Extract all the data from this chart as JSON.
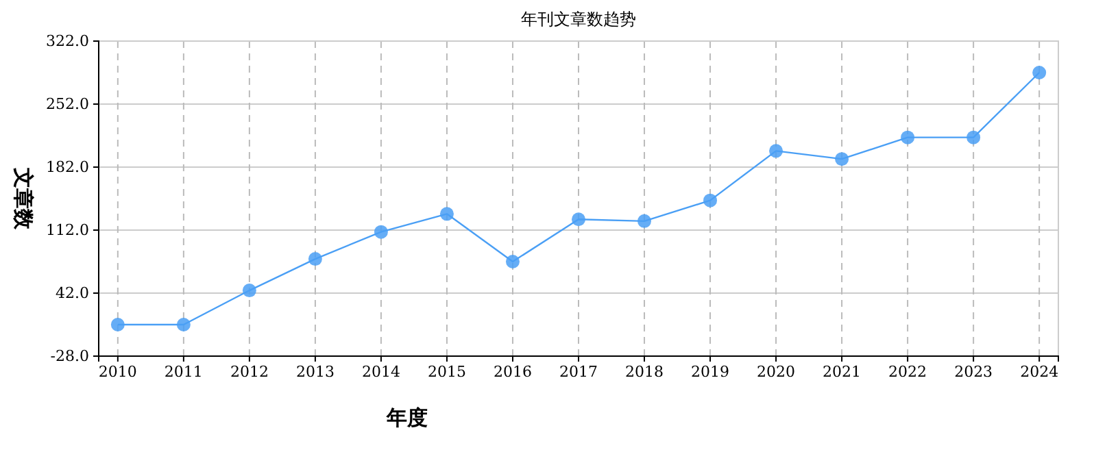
{
  "chart_data": {
    "type": "line",
    "title": "年刊文章数趋势",
    "xlabel": "年度",
    "ylabel": "文章数",
    "categories": [
      "2010",
      "2011",
      "2012",
      "2013",
      "2014",
      "2015",
      "2016",
      "2017",
      "2018",
      "2019",
      "2020",
      "2021",
      "2022",
      "2023",
      "2024"
    ],
    "series": [
      {
        "color": "#4a9ff5",
        "values": [
          7,
          7,
          45,
          80,
          110,
          130,
          77,
          124,
          122,
          145,
          200,
          191,
          215,
          215,
          287
        ]
      }
    ],
    "ylim": [
      -28,
      322
    ],
    "yticks": [
      {
        "value": -28,
        "label": "-28.0"
      },
      {
        "value": 42,
        "label": "42.0"
      },
      {
        "value": 112,
        "label": "112.0"
      },
      {
        "value": 182,
        "label": "182.0"
      },
      {
        "value": 252,
        "label": "252.0"
      },
      {
        "value": 322,
        "label": "322.0"
      }
    ],
    "grid": true,
    "marker": "circle",
    "line_style": "solid"
  }
}
